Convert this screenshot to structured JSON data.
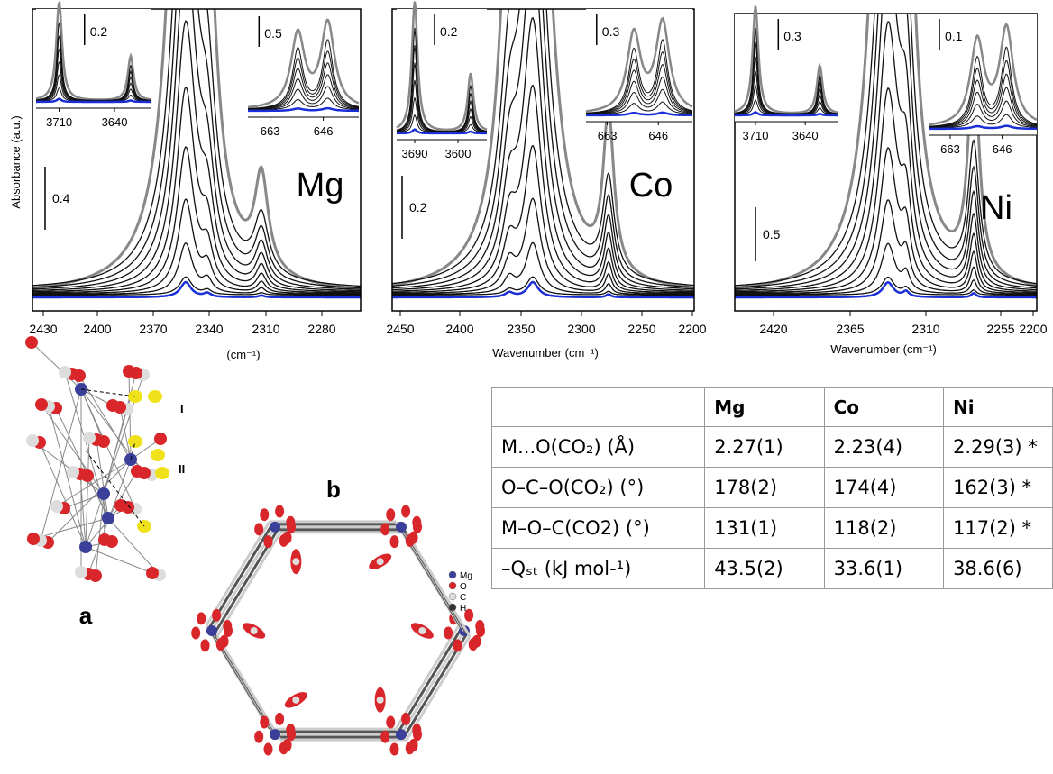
{
  "panels": [
    {
      "element": "Mg",
      "y_label": "Absorbance (a.u.)",
      "x_label": "(cm⁻¹)",
      "x_ticks": [
        "2430",
        "2400",
        "2370",
        "2340",
        "2310",
        "2280"
      ],
      "scale_bar": "0.4",
      "insets": [
        {
          "scale_bar": "0.2",
          "x_ticks": [
            "3710",
            "3640"
          ]
        },
        {
          "scale_bar": "0.5",
          "x_ticks": [
            "663",
            "646"
          ]
        }
      ]
    },
    {
      "element": "Co",
      "x_label": "Wavenumber (cm⁻¹)",
      "x_ticks": [
        "2450",
        "2400",
        "2350",
        "2300",
        "2250",
        "2200"
      ],
      "scale_bar": "0.2",
      "insets": [
        {
          "scale_bar": "0.2",
          "x_ticks": [
            "3690",
            "3600"
          ]
        },
        {
          "scale_bar": "0.3",
          "x_ticks": [
            "663",
            "646"
          ]
        }
      ]
    },
    {
      "element": "Ni",
      "x_label": "Wavenumber (cm⁻¹)",
      "x_ticks": [
        "2420",
        "2365",
        "2310",
        "2255",
        "2200"
      ],
      "scale_bar": "0.5",
      "insets": [
        {
          "scale_bar": "0.3",
          "x_ticks": [
            "3710",
            "3640"
          ]
        },
        {
          "scale_bar": "0.1",
          "x_ticks": [
            "663",
            "646"
          ]
        }
      ]
    }
  ],
  "structures": {
    "a": {
      "label": "a",
      "site_labels": [
        "I",
        "II"
      ]
    },
    "b": {
      "label": "b",
      "legend": [
        "Mg",
        "O",
        "C",
        "H"
      ]
    }
  },
  "table": {
    "columns": [
      "Mg",
      "Co",
      "Ni"
    ],
    "rows": [
      {
        "label": "M...O(CO₂) (Å)",
        "values": [
          "2.27(1)",
          "2.23(4)",
          "2.29(3) *"
        ]
      },
      {
        "label": "O–C–O(CO₂) (°)",
        "values": [
          "178(2)",
          "174(4)",
          "162(3) *"
        ]
      },
      {
        "label": "M–O–C(CO2) (°)",
        "values": [
          "131(1)",
          "118(2)",
          "117(2) *"
        ]
      },
      {
        "label": "–Qₛₜ (kJ mol-¹)",
        "values": [
          "43.5(2)",
          "33.6(1)",
          "38.6(6)"
        ]
      }
    ]
  }
}
